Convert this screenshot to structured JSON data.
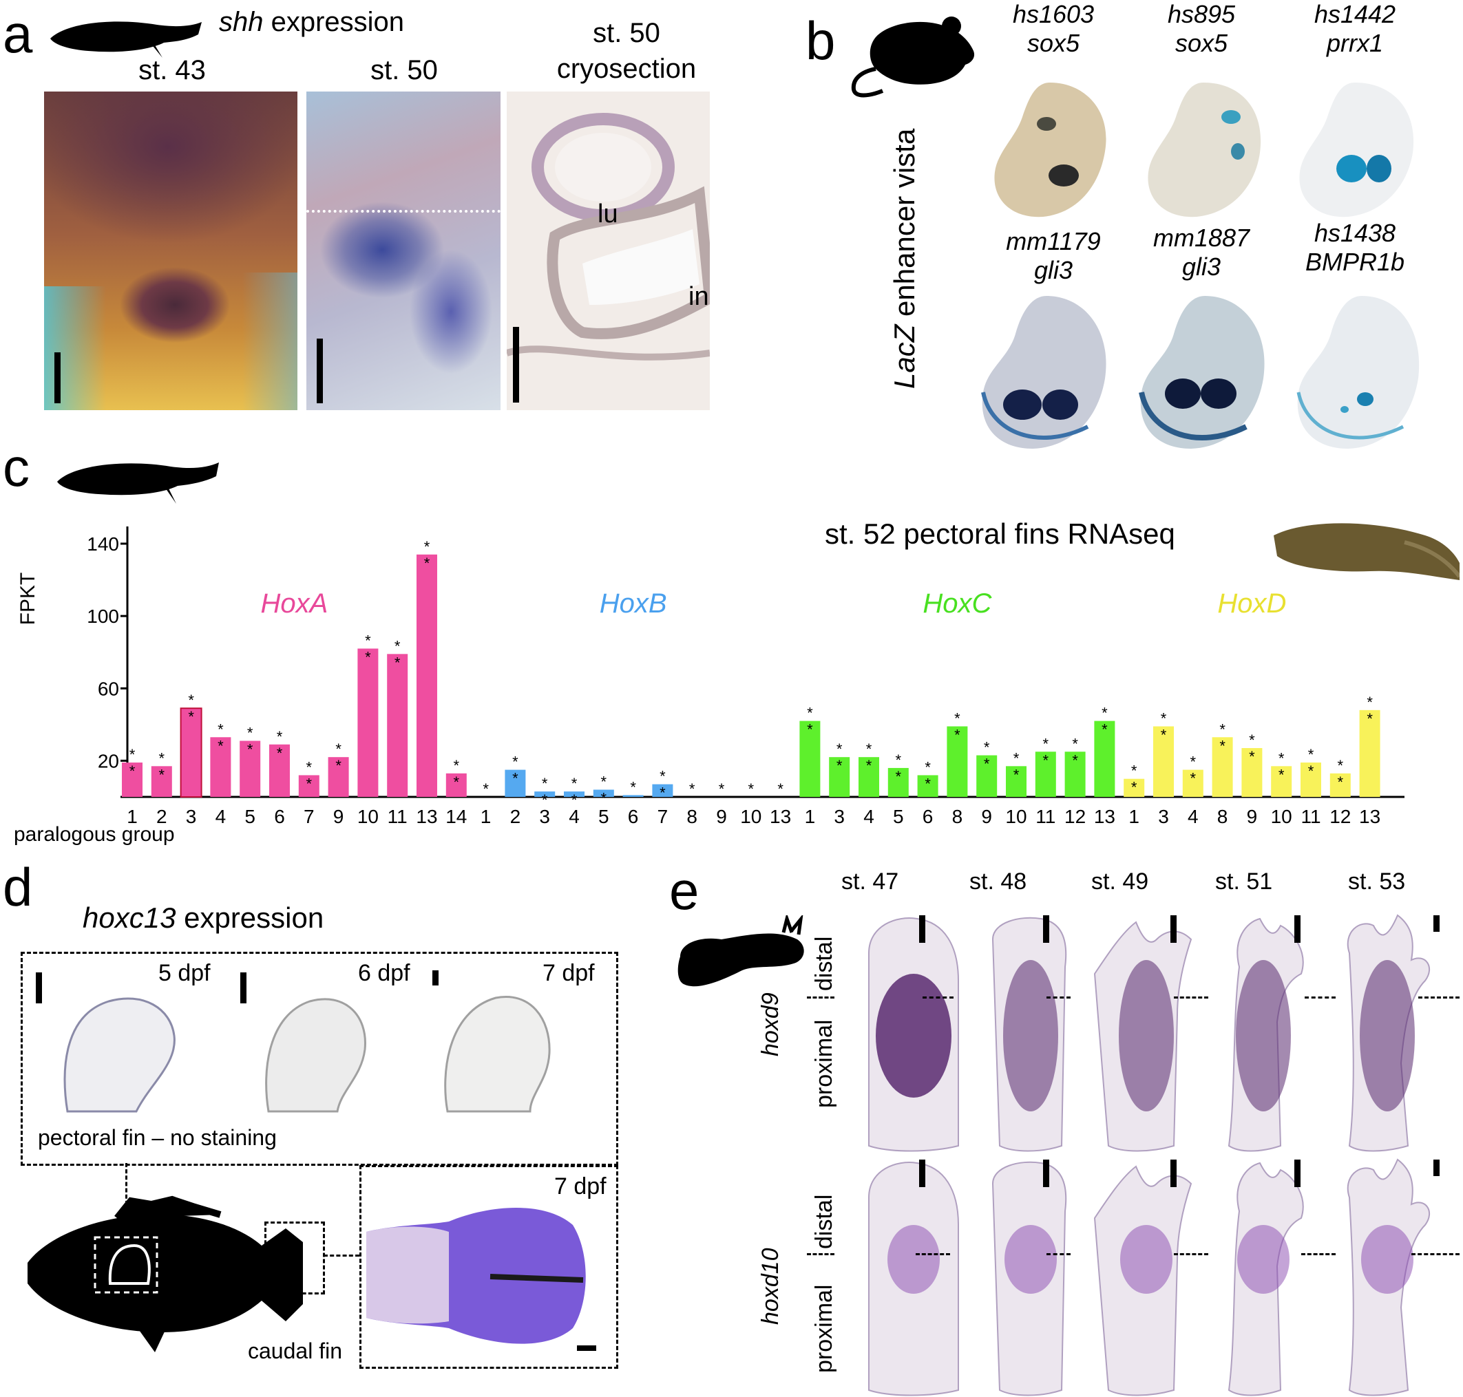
{
  "panel_a": {
    "label": "a",
    "title_gene": "shh",
    "title_rest": " expression",
    "stage1": "st. 43",
    "stage2": "st. 50",
    "stage3_line1": "st. 50",
    "stage3_line2": "cryosection",
    "lu": "lu",
    "in": "in"
  },
  "panel_b": {
    "label": "b",
    "side_italic": "LacZ",
    "side_rest": " enhancer vista",
    "embryos": [
      {
        "id": "hs1603",
        "gene": "sox5"
      },
      {
        "id": "hs895",
        "gene": "sox5"
      },
      {
        "id": "hs1442",
        "gene": "prrx1"
      },
      {
        "id": "mm1179",
        "gene": "gli3"
      },
      {
        "id": "mm1887",
        "gene": "gli3"
      },
      {
        "id": "hs1438",
        "gene": "BMPR1b"
      }
    ]
  },
  "panel_c": {
    "label": "c",
    "title": "st. 52 pectoral fins RNAseq",
    "star": "*"
  },
  "chart_data": {
    "type": "bar",
    "title": "st. 52 pectoral fins RNAseq",
    "ylabel": "FPKT",
    "xlabel": "paralogous group",
    "ylim": [
      0,
      140
    ],
    "yticks": [
      20,
      60,
      100,
      140
    ],
    "series": [
      {
        "name": "HoxA",
        "color": "#ef4ea0",
        "categories": [
          "1",
          "2",
          "3",
          "4",
          "5",
          "6",
          "7",
          "9",
          "10",
          "11",
          "13",
          "14"
        ],
        "values": [
          19,
          17,
          49,
          33,
          31,
          29,
          12,
          22,
          82,
          79,
          134,
          13
        ],
        "stars": [
          true,
          true,
          true,
          true,
          true,
          true,
          true,
          true,
          true,
          true,
          true,
          true
        ]
      },
      {
        "name": "HoxB",
        "color": "#55a9f0",
        "categories": [
          "1",
          "2",
          "3",
          "4",
          "5",
          "6",
          "7",
          "8",
          "9",
          "10",
          "13"
        ],
        "values": [
          0,
          15,
          3,
          3,
          4,
          1,
          7,
          0,
          0,
          0,
          0
        ],
        "stars": [
          true,
          true,
          true,
          true,
          true,
          true,
          true,
          true,
          true,
          true,
          true
        ]
      },
      {
        "name": "HoxC",
        "color": "#5ef02c",
        "categories": [
          "1",
          "3",
          "4",
          "5",
          "6",
          "8",
          "9",
          "10",
          "11",
          "12",
          "13"
        ],
        "values": [
          42,
          22,
          22,
          16,
          12,
          39,
          23,
          17,
          25,
          25,
          42
        ],
        "stars": [
          true,
          true,
          true,
          true,
          true,
          true,
          true,
          true,
          true,
          true,
          true
        ]
      },
      {
        "name": "HoxD",
        "color": "#f8f25a",
        "categories": [
          "1",
          "3",
          "4",
          "8",
          "9",
          "10",
          "11",
          "12",
          "13"
        ],
        "values": [
          10,
          39,
          15,
          33,
          27,
          17,
          19,
          13,
          48
        ],
        "stars": [
          true,
          true,
          true,
          true,
          true,
          true,
          true,
          true,
          true
        ]
      }
    ]
  },
  "panel_d": {
    "label": "d",
    "title_gene": "hoxc13",
    "title_rest": " expression",
    "dpf1": "5 dpf",
    "dpf2": "6 dpf",
    "dpf3": "7 dpf",
    "dpf4": "7 dpf",
    "no_staining": "pectoral fin – no staining",
    "caudal_fin": "caudal fin"
  },
  "panel_e": {
    "label": "e",
    "stages": [
      "st. 47",
      "st. 48",
      "st. 49",
      "st. 51",
      "st. 53"
    ],
    "row1_gene": "hoxd9",
    "row2_gene": "hoxd10",
    "distal": "distal",
    "proximal": "proximal"
  }
}
